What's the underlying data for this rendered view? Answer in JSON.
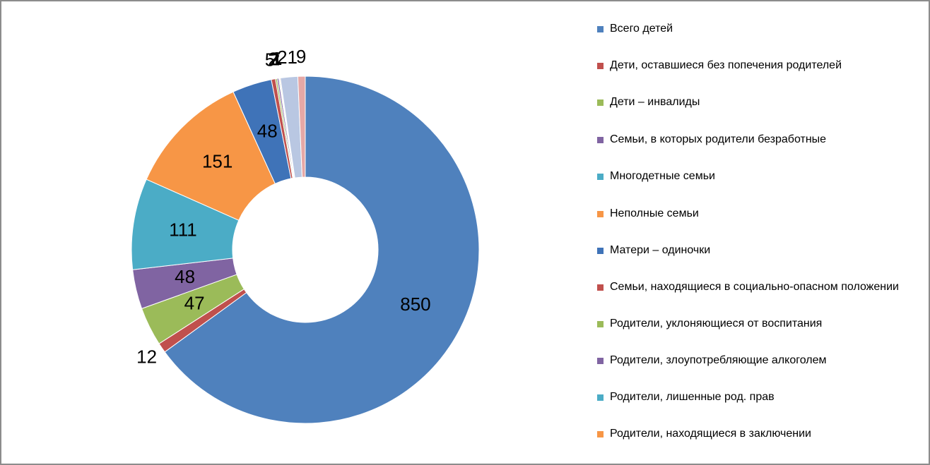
{
  "chart_data": {
    "type": "donut",
    "categories": [
      "Всего детей",
      "Дети, оставшиеся без попечения родителей",
      "Дети – инвалиды",
      "Семьи, в которых родители безработные",
      "Многодетные семьи",
      "Неполные семьи",
      "Матери – одиночки",
      "Семьи, находящиеся в социально-опасном положении",
      "Родители, уклоняющиеся от воспитания",
      "Родители, злоупотребляющие алкоголем",
      "Родители, лишенные род. прав",
      "Родители, находящиеся в заключении",
      null,
      null
    ],
    "values": [
      850,
      12,
      47,
      48,
      111,
      151,
      48,
      5,
      2,
      2,
      1,
      1,
      21,
      9
    ],
    "colors": [
      "#4f81bd",
      "#c0504d",
      "#9bbb59",
      "#8064a2",
      "#4bacc6",
      "#f79646",
      "#3f73b8",
      "#c0504d",
      "#9bbb59",
      "#8064a2",
      "#4bacc6",
      "#f79646",
      "#b9c7e2",
      "#e6a8a6"
    ],
    "legend": "right"
  }
}
